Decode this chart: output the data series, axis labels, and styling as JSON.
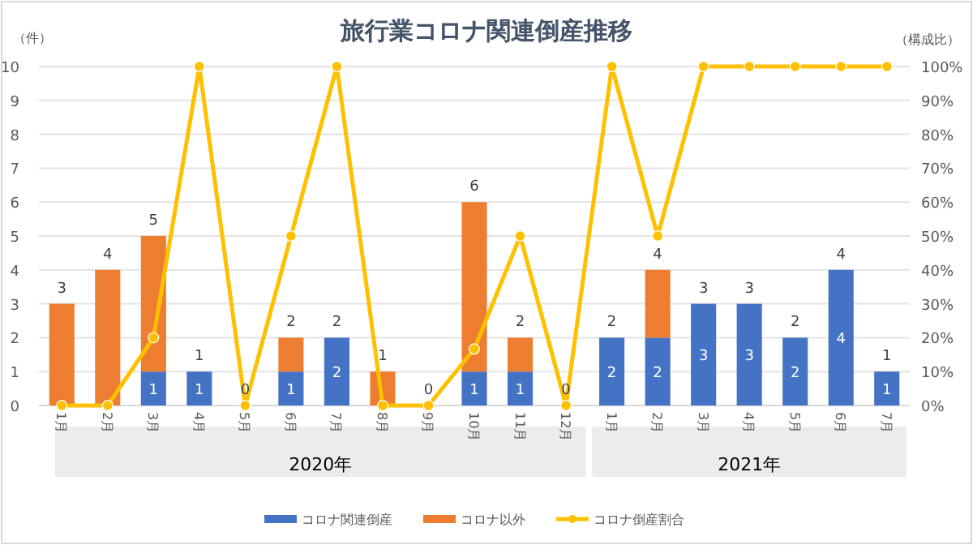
{
  "chart_data": {
    "type": "bar",
    "title": "旅行業コロナ関連倒産推移",
    "ylabel": "（件）",
    "y2label": "（構成比）",
    "categories": [
      "1月",
      "2月",
      "3月",
      "4月",
      "5月",
      "6月",
      "7月",
      "8月",
      "9月",
      "10月",
      "11月",
      "12月",
      "1月",
      "2月",
      "3月",
      "4月",
      "5月",
      "6月",
      "7月"
    ],
    "stacked": true,
    "series": [
      {
        "name": "コロナ関連倒産",
        "color": "#4472c4",
        "values": [
          0,
          0,
          1,
          1,
          0,
          1,
          2,
          0,
          0,
          1,
          1,
          0,
          2,
          2,
          3,
          3,
          2,
          4,
          1
        ],
        "value_labels": [
          null,
          null,
          "1",
          "1",
          null,
          "1",
          "2",
          null,
          null,
          "1",
          "1",
          null,
          "2",
          "2",
          "3",
          "3",
          "2",
          "4",
          "1"
        ]
      },
      {
        "name": "コロナ以外",
        "color": "#ed7d31",
        "values": [
          3,
          4,
          4,
          0,
          0,
          1,
          0,
          1,
          0,
          5,
          1,
          0,
          0,
          2,
          0,
          0,
          0,
          0,
          0
        ]
      },
      {
        "name": "コロナ倒産割合",
        "type": "line",
        "axis": "y2",
        "color": "#ffc000",
        "marker": "circle",
        "values": [
          0,
          0,
          20,
          100,
          0,
          50,
          100,
          0,
          0,
          16.7,
          50,
          0,
          100,
          50,
          100,
          100,
          100,
          100,
          100
        ]
      }
    ],
    "totals": [
      "3",
      "4",
      "5",
      "1",
      "0",
      "2",
      "2",
      "1",
      "0",
      "6",
      "2",
      "0",
      "2",
      "4",
      "3",
      "3",
      "2",
      "4",
      "1"
    ],
    "annotations": [
      "2020年",
      "2021年"
    ],
    "ylim": [
      0,
      10
    ],
    "yticks": [
      0,
      1,
      2,
      3,
      4,
      5,
      6,
      7,
      8,
      9,
      10
    ],
    "y2lim": [
      0,
      100
    ],
    "y2ticks": [
      {
        "value": 0,
        "label": "0%"
      },
      {
        "value": 10,
        "label": "10%"
      },
      {
        "value": 20,
        "label": "20%"
      },
      {
        "value": 30,
        "label": "30%"
      },
      {
        "value": 40,
        "label": "40%"
      },
      {
        "value": 50,
        "label": "50%"
      },
      {
        "value": 60,
        "label": "60%"
      },
      {
        "value": 70,
        "label": "70%"
      },
      {
        "value": 80,
        "label": "80%"
      },
      {
        "value": 90,
        "label": "90%"
      },
      {
        "value": 100,
        "label": "100%"
      }
    ],
    "grid": "y",
    "legend": "bottom"
  }
}
